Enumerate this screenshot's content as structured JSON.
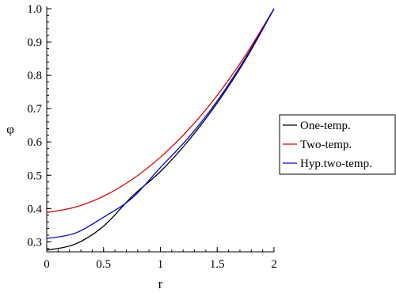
{
  "chart_data": {
    "type": "line",
    "xlabel": "r",
    "ylabel": "φ",
    "xlim": [
      0,
      2
    ],
    "ylim": [
      0.27,
      1.0
    ],
    "x_ticks": [
      "0",
      "0.5",
      "1",
      "1.5",
      "2"
    ],
    "x_tick_values": [
      0,
      0.5,
      1,
      1.5,
      2
    ],
    "y_ticks": [
      "0.3",
      "0.4",
      "0.5",
      "0.6",
      "0.7",
      "0.8",
      "0.9",
      "1.0"
    ],
    "y_tick_values": [
      0.3,
      0.4,
      0.5,
      0.6,
      0.7,
      0.8,
      0.9,
      1.0
    ],
    "grid": false,
    "legend_position": "right",
    "x": [
      0,
      0.25,
      0.5,
      0.75,
      1.0,
      1.25,
      1.5,
      1.75,
      2.0
    ],
    "series": [
      {
        "name": "One-temp.",
        "color": "#000000",
        "values": [
          0.275,
          0.293,
          0.347,
          0.436,
          0.511,
          0.605,
          0.717,
          0.848,
          1.0
        ]
      },
      {
        "name": "Two-temp.",
        "color": "#e00000",
        "values": [
          0.388,
          0.404,
          0.437,
          0.487,
          0.554,
          0.638,
          0.74,
          0.861,
          1.0
        ]
      },
      {
        "name": "Hyp.two-temp.",
        "color": "#0000e0",
        "values": [
          0.31,
          0.326,
          0.374,
          0.431,
          0.523,
          0.614,
          0.723,
          0.853,
          1.0
        ]
      }
    ]
  }
}
